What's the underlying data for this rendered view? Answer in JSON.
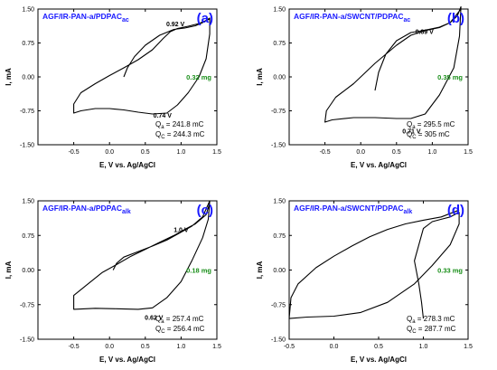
{
  "chart_data": [
    {
      "panel": "a",
      "type": "line",
      "title": "AGF/IR-PAN-a/PDPAC",
      "title_sub": "ac",
      "letter": "(a)",
      "mass": "0.32 mg",
      "peak_labels": [
        {
          "text": "0.92 V",
          "at": [
            0.92,
            1.12
          ]
        },
        {
          "text": "0.74 V",
          "at": [
            0.74,
            -0.9
          ]
        }
      ],
      "charges": {
        "qa_value": "241.8 mC",
        "qc_value": "244.3 mC"
      },
      "xlabel": "E, V vs. Ag/AgCl",
      "ylabel": "I, mA",
      "xlim": [
        -1.0,
        1.5
      ],
      "ylim": [
        -1.5,
        1.5
      ],
      "xticks": [
        "-0.5",
        "0.0",
        "0.5",
        "1.0",
        "1.5"
      ],
      "yticks": [
        "-1.50",
        "-0.75",
        "0.00",
        "0.75",
        "1.50"
      ],
      "series": [
        {
          "x": [
            0.2,
            0.25,
            0.35,
            0.5,
            0.7,
            0.9,
            1.05,
            1.2,
            1.3,
            1.4,
            1.4,
            1.35,
            1.25,
            1.1,
            0.95,
            0.8,
            0.6,
            0.4,
            0.2,
            0.0,
            -0.2,
            -0.4,
            -0.5,
            -0.5,
            -0.4,
            -0.2,
            0.0,
            0.2,
            0.4,
            0.6,
            0.75,
            0.85,
            0.95,
            1.1,
            1.25,
            1.4
          ],
          "y": [
            0.0,
            0.2,
            0.45,
            0.7,
            0.92,
            1.05,
            1.08,
            1.13,
            1.2,
            1.3,
            0.95,
            0.4,
            0.0,
            -0.35,
            -0.62,
            -0.8,
            -0.82,
            -0.78,
            -0.73,
            -0.7,
            -0.7,
            -0.75,
            -0.8,
            -0.6,
            -0.35,
            -0.15,
            0.03,
            0.2,
            0.38,
            0.6,
            0.85,
            1.0,
            1.07,
            1.12,
            1.18,
            1.28
          ]
        }
      ]
    },
    {
      "panel": "b",
      "type": "line",
      "title": "AGF/IR-PAN-a/SWCNT/PDPAC",
      "title_sub": "ac",
      "letter": "(b)",
      "mass": "0.35 mg",
      "peak_labels": [
        {
          "text": "0.89 V",
          "at": [
            0.89,
            0.95
          ]
        },
        {
          "text": "0.71 V",
          "at": [
            0.71,
            -1.25
          ]
        }
      ],
      "charges": {
        "qa_value": "295.5 mC",
        "qc_value": "305 mC"
      },
      "xlabel": "E, V vs. Ag/AgCl",
      "ylabel": "I, mA",
      "xlim": [
        -1.0,
        1.5
      ],
      "ylim": [
        -1.5,
        1.5
      ],
      "xticks": [
        "-0.5",
        "0.0",
        "0.5",
        "1.0",
        "1.5"
      ],
      "yticks": [
        "-1.50",
        "-0.75",
        "0.00",
        "0.75",
        "1.50"
      ],
      "series": [
        {
          "x": [
            0.2,
            0.25,
            0.35,
            0.5,
            0.7,
            0.85,
            0.95,
            1.1,
            1.25,
            1.35,
            1.4,
            1.38,
            1.3,
            1.1,
            0.9,
            0.7,
            0.5,
            0.2,
            -0.1,
            -0.4,
            -0.5,
            -0.48,
            -0.35,
            -0.1,
            0.2,
            0.5,
            0.7,
            0.85,
            0.95,
            1.1,
            1.25,
            1.4
          ],
          "y": [
            -0.3,
            0.1,
            0.5,
            0.8,
            0.98,
            1.02,
            1.05,
            1.1,
            1.2,
            1.35,
            1.55,
            0.9,
            0.2,
            -0.4,
            -0.82,
            -0.92,
            -0.92,
            -0.9,
            -0.9,
            -0.95,
            -1.0,
            -0.75,
            -0.45,
            -0.15,
            0.3,
            0.7,
            0.92,
            1.0,
            1.04,
            1.09,
            1.2,
            1.5
          ]
        }
      ]
    },
    {
      "panel": "c",
      "type": "line",
      "title": "AGF/IR-PAN-a/PDPAC",
      "title_sub": "alk",
      "letter": "(c)",
      "mass": "0.18 mg",
      "peak_labels": [
        {
          "text": "1.0 V",
          "at": [
            1.0,
            0.82
          ]
        },
        {
          "text": "0.62 V",
          "at": [
            0.62,
            -1.08
          ]
        }
      ],
      "charges": {
        "qa_value": "257.4 mC",
        "qc_value": "256.4 mC"
      },
      "xlabel": "E, V vs. Ag/AgCl",
      "ylabel": "I, mA",
      "xlim": [
        -1.0,
        1.5
      ],
      "ylim": [
        -1.5,
        1.5
      ],
      "xticks": [
        "-0.5",
        "0.0",
        "0.5",
        "1.0",
        "1.5"
      ],
      "yticks": [
        "-1.50",
        "-0.75",
        "0.00",
        "0.75",
        "1.50"
      ],
      "series": [
        {
          "x": [
            0.05,
            0.1,
            0.2,
            0.4,
            0.6,
            0.8,
            1.0,
            1.15,
            1.3,
            1.4,
            1.38,
            1.3,
            1.15,
            1.0,
            0.8,
            0.6,
            0.4,
            0.1,
            -0.2,
            -0.5,
            -0.5,
            -0.3,
            -0.1,
            0.1,
            0.3,
            0.5,
            0.7,
            0.9,
            1.05,
            1.2,
            1.35,
            1.4
          ],
          "y": [
            0.0,
            0.15,
            0.28,
            0.4,
            0.52,
            0.65,
            0.82,
            0.95,
            1.15,
            1.5,
            1.1,
            0.7,
            0.2,
            -0.25,
            -0.6,
            -0.82,
            -0.85,
            -0.84,
            -0.83,
            -0.85,
            -0.55,
            -0.3,
            -0.05,
            0.12,
            0.3,
            0.45,
            0.6,
            0.75,
            0.88,
            1.0,
            1.2,
            1.45
          ]
        }
      ]
    },
    {
      "panel": "d",
      "type": "line",
      "title": "AGF/IR-PAN-a/SWCNT/PDPAC",
      "title_sub": "alk",
      "letter": "(d)",
      "mass": "0.33 mg",
      "peak_labels": [],
      "charges": {
        "qa_value": "278.3 mC",
        "qc_value": "287.7 mC"
      },
      "xlabel": "E, V vs. Ag/AgCl",
      "ylabel": "I, mA",
      "xlim": [
        -0.5,
        1.5
      ],
      "ylim": [
        -1.5,
        1.5
      ],
      "xticks": [
        "-0.5",
        "0.0",
        "0.5",
        "1.0",
        "1.5"
      ],
      "yticks": [
        "-1.50",
        "-0.75",
        "0.00",
        "0.75",
        "1.50"
      ],
      "series": [
        {
          "x": [
            1.0,
            0.98,
            0.95,
            0.9,
            1.0,
            1.1,
            1.2,
            1.3,
            1.4,
            1.4,
            1.3,
            1.1,
            0.9,
            0.6,
            0.3,
            0.0,
            -0.3,
            -0.5,
            -0.48,
            -0.4,
            -0.2,
            0.0,
            0.2,
            0.4,
            0.6,
            0.8,
            1.0,
            1.2,
            1.4
          ],
          "y": [
            -1.05,
            -0.7,
            -0.3,
            0.2,
            0.9,
            1.05,
            1.1,
            1.15,
            1.25,
            1.0,
            0.55,
            0.1,
            -0.3,
            -0.7,
            -0.92,
            -1.0,
            -1.02,
            -1.05,
            -0.6,
            -0.3,
            0.05,
            0.3,
            0.52,
            0.72,
            0.88,
            1.0,
            1.08,
            1.15,
            1.3
          ]
        }
      ]
    }
  ]
}
